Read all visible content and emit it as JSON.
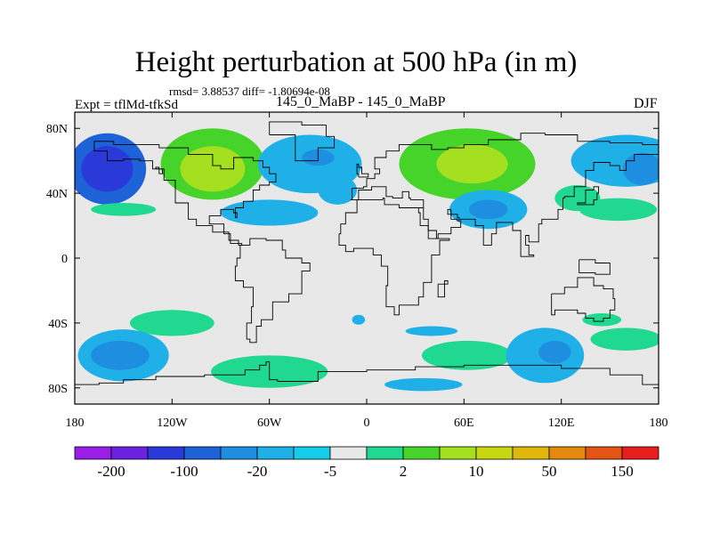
{
  "chart_data": {
    "type": "heatmap",
    "title": "Height perturbation at 500 hPa (in m)",
    "stats_text": "rmsd= 3.88537 diff= -1.80694e-08",
    "experiment": "Expt = tflMd-tfkSd",
    "center_subtitle": "145_0_MaBP - 145_0_MaBP",
    "season": "DJF",
    "x_axis": {
      "range": [
        -180,
        180
      ],
      "ticks": [
        -180,
        -120,
        -60,
        0,
        60,
        120,
        180
      ],
      "tick_labels": [
        "180",
        "120W",
        "60W",
        "0",
        "60E",
        "120E",
        "180"
      ]
    },
    "y_axis": {
      "range": [
        -90,
        90
      ],
      "ticks": [
        80,
        40,
        0,
        -40,
        -80
      ],
      "tick_labels": [
        "80N",
        "40N",
        "0",
        "40S",
        "80S"
      ]
    },
    "colorbar": {
      "colors": [
        "#9a1ee8",
        "#6a22e0",
        "#2a3ad8",
        "#1e62d8",
        "#1e8ee0",
        "#20b0e8",
        "#15cdea",
        "#e8e8e8",
        "#20d890",
        "#46d42a",
        "#a4e020",
        "#c8d810",
        "#e0b80c",
        "#e4880e",
        "#e45414",
        "#e81e1e"
      ],
      "labels": [
        {
          "text": "-200",
          "boundary": 1
        },
        {
          "text": "-100",
          "boundary": 3
        },
        {
          "text": "-20",
          "boundary": 5
        },
        {
          "text": "-5",
          "boundary": 7
        },
        {
          "text": "2",
          "boundary": 9
        },
        {
          "text": "10",
          "boundary": 11
        },
        {
          "text": "50",
          "boundary": 13
        },
        {
          "text": "150",
          "boundary": 15
        }
      ]
    },
    "features": [
      {
        "lon": -160,
        "lat": 55,
        "rlon": 24,
        "rlat": 22,
        "level": 3
      },
      {
        "lon": -160,
        "lat": 55,
        "rlon": 16,
        "rlat": 14,
        "level": 2
      },
      {
        "lon": -150,
        "lat": 30,
        "rlon": 20,
        "rlat": 4,
        "level": 8
      },
      {
        "lon": -95,
        "lat": 58,
        "rlon": 32,
        "rlat": 22,
        "level": 9
      },
      {
        "lon": -95,
        "lat": 55,
        "rlon": 20,
        "rlat": 14,
        "level": 10
      },
      {
        "lon": -60,
        "lat": 28,
        "rlon": 30,
        "rlat": 8,
        "level": 5
      },
      {
        "lon": -35,
        "lat": 58,
        "rlon": 32,
        "rlat": 18,
        "level": 5
      },
      {
        "lon": -30,
        "lat": 62,
        "rlon": 10,
        "rlat": 5,
        "level": 4
      },
      {
        "lon": -18,
        "lat": 42,
        "rlon": 12,
        "rlat": 9,
        "level": 5
      },
      {
        "lon": 62,
        "lat": 58,
        "rlon": 42,
        "rlat": 22,
        "level": 9
      },
      {
        "lon": 65,
        "lat": 58,
        "rlon": 22,
        "rlat": 12,
        "level": 10
      },
      {
        "lon": 160,
        "lat": 60,
        "rlon": 34,
        "rlat": 16,
        "level": 5
      },
      {
        "lon": 170,
        "lat": 55,
        "rlon": 12,
        "rlat": 10,
        "level": 4
      },
      {
        "lon": 155,
        "lat": 30,
        "rlon": 24,
        "rlat": 7,
        "level": 8
      },
      {
        "lon": 75,
        "lat": 30,
        "rlon": 24,
        "rlat": 12,
        "level": 5
      },
      {
        "lon": 75,
        "lat": 30,
        "rlon": 12,
        "rlat": 6,
        "level": 4
      },
      {
        "lon": 130,
        "lat": 37,
        "rlon": 14,
        "rlat": 8,
        "level": 8
      },
      {
        "lon": -120,
        "lat": -40,
        "rlon": 26,
        "rlat": 8,
        "level": 8
      },
      {
        "lon": 145,
        "lat": -38,
        "rlon": 12,
        "rlat": 4,
        "level": 8
      },
      {
        "lon": -150,
        "lat": -60,
        "rlon": 28,
        "rlat": 16,
        "level": 5
      },
      {
        "lon": -152,
        "lat": -60,
        "rlon": 18,
        "rlat": 9,
        "level": 4
      },
      {
        "lon": -60,
        "lat": -70,
        "rlon": 36,
        "rlat": 10,
        "level": 8
      },
      {
        "lon": 62,
        "lat": -60,
        "rlon": 28,
        "rlat": 9,
        "level": 8
      },
      {
        "lon": 110,
        "lat": -60,
        "rlon": 24,
        "rlat": 17,
        "level": 5
      },
      {
        "lon": 116,
        "lat": -58,
        "rlon": 10,
        "rlat": 7,
        "level": 4
      },
      {
        "lon": 160,
        "lat": -50,
        "rlon": 22,
        "rlat": 7,
        "level": 8
      },
      {
        "lon": -5,
        "lat": -38,
        "rlon": 4,
        "rlat": 3,
        "level": 5
      },
      {
        "lon": 40,
        "lat": -45,
        "rlon": 16,
        "rlat": 3,
        "level": 5
      },
      {
        "lon": 35,
        "lat": -78,
        "rlon": 24,
        "rlat": 4,
        "level": 5
      }
    ],
    "coastlines": [
      [
        [
          -168,
          66
        ],
        [
          -160,
          60
        ],
        [
          -150,
          61
        ],
        [
          -140,
          60
        ],
        [
          -132,
          55
        ],
        [
          -125,
          48
        ],
        [
          -118,
          34
        ],
        [
          -110,
          24
        ],
        [
          -105,
          20
        ],
        [
          -95,
          16
        ],
        [
          -85,
          11
        ],
        [
          -79,
          8
        ],
        [
          -77,
          9
        ],
        [
          -84,
          15
        ],
        [
          -88,
          21
        ],
        [
          -97,
          26
        ],
        [
          -90,
          30
        ],
        [
          -82,
          28
        ],
        [
          -80,
          25
        ],
        [
          -81,
          31
        ],
        [
          -76,
          35
        ],
        [
          -70,
          42
        ],
        [
          -66,
          45
        ],
        [
          -60,
          47
        ],
        [
          -56,
          52
        ],
        [
          -60,
          56
        ],
        [
          -64,
          60
        ],
        [
          -70,
          62
        ],
        [
          -78,
          62
        ],
        [
          -82,
          55
        ],
        [
          -90,
          57
        ],
        [
          -95,
          64
        ],
        [
          -110,
          68
        ],
        [
          -128,
          70
        ],
        [
          -140,
          70
        ],
        [
          -156,
          72
        ],
        [
          -168,
          66
        ]
      ],
      [
        [
          -60,
          76
        ],
        [
          -44,
          60
        ],
        [
          -30,
          68
        ],
        [
          -20,
          75
        ],
        [
          -25,
          82
        ],
        [
          -40,
          84
        ],
        [
          -60,
          80
        ],
        [
          -60,
          76
        ]
      ],
      [
        [
          -78,
          8
        ],
        [
          -72,
          12
        ],
        [
          -62,
          11
        ],
        [
          -52,
          5
        ],
        [
          -50,
          0
        ],
        [
          -40,
          -3
        ],
        [
          -35,
          -8
        ],
        [
          -40,
          -22
        ],
        [
          -48,
          -27
        ],
        [
          -58,
          -38
        ],
        [
          -65,
          -42
        ],
        [
          -68,
          -52
        ],
        [
          -72,
          -50
        ],
        [
          -74,
          -40
        ],
        [
          -71,
          -30
        ],
        [
          -70,
          -18
        ],
        [
          -76,
          -14
        ],
        [
          -81,
          -5
        ],
        [
          -80,
          0
        ],
        [
          -78,
          8
        ]
      ],
      [
        [
          -10,
          36
        ],
        [
          -9,
          43
        ],
        [
          -2,
          44
        ],
        [
          0,
          49
        ],
        [
          5,
          52
        ],
        [
          8,
          55
        ],
        [
          5,
          62
        ],
        [
          12,
          66
        ],
        [
          20,
          70
        ],
        [
          30,
          70
        ],
        [
          40,
          67
        ],
        [
          50,
          68
        ],
        [
          60,
          70
        ],
        [
          75,
          73
        ],
        [
          95,
          77
        ],
        [
          110,
          76
        ],
        [
          130,
          72
        ],
        [
          150,
          71
        ],
        [
          170,
          70
        ],
        [
          180,
          68
        ],
        [
          180,
          64
        ],
        [
          165,
          60
        ],
        [
          160,
          54
        ],
        [
          156,
          57
        ],
        [
          150,
          59
        ],
        [
          140,
          54
        ],
        [
          135,
          44
        ],
        [
          128,
          38
        ],
        [
          122,
          37
        ],
        [
          121,
          30
        ],
        [
          118,
          24
        ],
        [
          108,
          21
        ],
        [
          106,
          10
        ],
        [
          100,
          14
        ],
        [
          98,
          8
        ],
        [
          100,
          2
        ],
        [
          103,
          1
        ],
        [
          95,
          17
        ],
        [
          90,
          22
        ],
        [
          80,
          15
        ],
        [
          77,
          8
        ],
        [
          72,
          20
        ],
        [
          67,
          24
        ],
        [
          57,
          25
        ],
        [
          56,
          27
        ],
        [
          50,
          30
        ],
        [
          52,
          24
        ],
        [
          56,
          23
        ],
        [
          58,
          19
        ],
        [
          52,
          15
        ],
        [
          44,
          12
        ],
        [
          38,
          20
        ],
        [
          33,
          28
        ],
        [
          32,
          31
        ],
        [
          35,
          36
        ],
        [
          27,
          37
        ],
        [
          26,
          41
        ],
        [
          22,
          37
        ],
        [
          16,
          38
        ],
        [
          12,
          44
        ],
        [
          8,
          44
        ],
        [
          3,
          42
        ],
        [
          -5,
          36
        ],
        [
          -10,
          36
        ]
      ],
      [
        [
          -17,
          15
        ],
        [
          -16,
          21
        ],
        [
          -13,
          28
        ],
        [
          -6,
          36
        ],
        [
          10,
          37
        ],
        [
          11,
          33
        ],
        [
          20,
          31
        ],
        [
          32,
          31
        ],
        [
          35,
          24
        ],
        [
          38,
          17
        ],
        [
          43,
          12
        ],
        [
          51,
          11
        ],
        [
          45,
          2
        ],
        [
          40,
          -4
        ],
        [
          40,
          -15
        ],
        [
          35,
          -24
        ],
        [
          32,
          -29
        ],
        [
          20,
          -35
        ],
        [
          17,
          -30
        ],
        [
          12,
          -17
        ],
        [
          13,
          -5
        ],
        [
          9,
          2
        ],
        [
          4,
          6
        ],
        [
          -8,
          4
        ],
        [
          -13,
          8
        ],
        [
          -17,
          15
        ]
      ],
      [
        [
          44,
          -16
        ],
        [
          50,
          -14
        ],
        [
          48,
          -24
        ],
        [
          44,
          -22
        ],
        [
          44,
          -16
        ]
      ],
      [
        [
          114,
          -22
        ],
        [
          122,
          -18
        ],
        [
          130,
          -12
        ],
        [
          136,
          -12
        ],
        [
          140,
          -17
        ],
        [
          146,
          -19
        ],
        [
          152,
          -25
        ],
        [
          153,
          -32
        ],
        [
          150,
          -37
        ],
        [
          146,
          -39
        ],
        [
          140,
          -37
        ],
        [
          135,
          -34
        ],
        [
          130,
          -32
        ],
        [
          116,
          -35
        ],
        [
          114,
          -26
        ],
        [
          114,
          -22
        ]
      ],
      [
        [
          131,
          -1
        ],
        [
          141,
          -3
        ],
        [
          150,
          -10
        ],
        [
          141,
          -9
        ],
        [
          131,
          -1
        ]
      ],
      [
        [
          -60,
          -64
        ],
        [
          -62,
          -66
        ],
        [
          -66,
          -69
        ],
        [
          -75,
          -72
        ],
        [
          -100,
          -73
        ],
        [
          -130,
          -75
        ],
        [
          -150,
          -77
        ],
        [
          -165,
          -78
        ],
        [
          -180,
          -78
        ],
        [
          -180,
          -90
        ],
        [
          180,
          -90
        ],
        [
          180,
          -78
        ],
        [
          170,
          -72
        ],
        [
          150,
          -68
        ],
        [
          120,
          -66
        ],
        [
          90,
          -66
        ],
        [
          60,
          -67
        ],
        [
          30,
          -69
        ],
        [
          0,
          -70
        ],
        [
          -30,
          -76
        ],
        [
          -55,
          -75
        ],
        [
          -60,
          -64
        ]
      ],
      [
        [
          -128,
          52
        ],
        [
          -126,
          55
        ],
        [
          -130,
          56
        ],
        [
          -128,
          52
        ]
      ],
      [
        [
          -5,
          50
        ],
        [
          1,
          52
        ],
        [
          -3,
          56
        ],
        [
          -5,
          58
        ],
        [
          -6,
          52
        ],
        [
          -5,
          50
        ]
      ],
      [
        [
          140,
          36
        ],
        [
          142,
          40
        ],
        [
          143,
          44
        ],
        [
          140,
          42
        ],
        [
          135,
          34
        ],
        [
          130,
          33
        ],
        [
          135,
          33
        ],
        [
          140,
          36
        ]
      ]
    ]
  }
}
